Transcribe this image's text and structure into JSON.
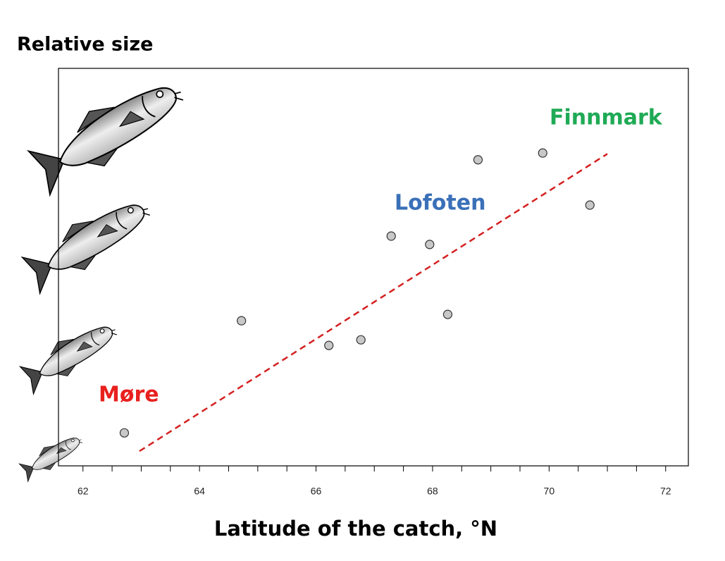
{
  "chart_data": {
    "type": "scatter",
    "y_label": "Relative size",
    "x_label": "Latitude of the catch, °N",
    "x": [
      62.71,
      64.72,
      66.22,
      66.77,
      67.29,
      67.95,
      68.26,
      68.78,
      69.89,
      70.7
    ],
    "y": [
      8.3,
      36.5,
      30.3,
      31.7,
      57.8,
      55.7,
      38.1,
      77.0,
      78.7,
      65.6
    ],
    "color": "#c8c8c8",
    "xlim": [
      61.58,
      72.39
    ],
    "ylim": [
      0,
      100
    ],
    "xticks": [
      62,
      64,
      66,
      68,
      70,
      72
    ],
    "xminorticks": [
      62.5,
      63,
      63.5,
      64.5,
      65,
      65.5,
      66.5,
      67,
      67.5,
      68.5,
      69,
      69.5,
      70.5,
      71,
      71.5
    ],
    "grid": false,
    "trendline": {
      "x": [
        62.97,
        71.0
      ],
      "y": [
        3.7,
        78.5
      ],
      "color": "#d42020"
    },
    "annotations": [
      {
        "text": "Møre",
        "color": "#e8201e"
      },
      {
        "text": "Lofoten",
        "color": "#3a70b8"
      },
      {
        "text": "Finnmark",
        "color": "#1faa55"
      }
    ]
  }
}
